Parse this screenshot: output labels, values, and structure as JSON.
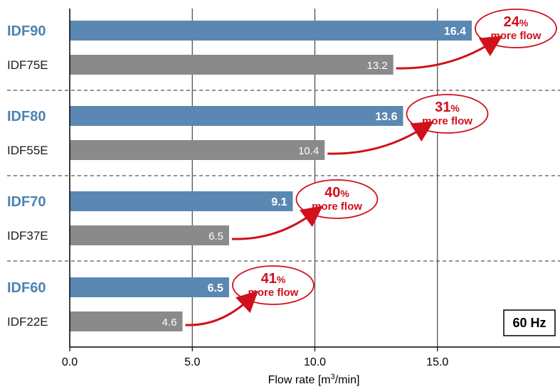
{
  "chart_data": {
    "type": "bar",
    "orientation": "horizontal",
    "categories": [
      "IDF90",
      "IDF75E",
      "IDF80",
      "IDF55E",
      "IDF70",
      "IDF37E",
      "IDF60",
      "IDF22E"
    ],
    "values": [
      16.4,
      13.2,
      13.6,
      10.4,
      9.1,
      6.5,
      6.5,
      4.6
    ],
    "value_labels": [
      "16.4",
      "13.2",
      "13.6",
      "10.4",
      "9.1",
      "6.5",
      "6.5",
      "4.6"
    ],
    "bar_styles": [
      "highlight",
      "normal",
      "highlight",
      "normal",
      "highlight",
      "normal",
      "highlight",
      "normal"
    ],
    "groups": [
      {
        "new_model": "IDF90",
        "old_model": "IDF75E",
        "new_value": 16.4,
        "old_value": 13.2,
        "increase_percent": "24",
        "percent_sign": "%",
        "callout_text": "more flow"
      },
      {
        "new_model": "IDF80",
        "old_model": "IDF55E",
        "new_value": 13.6,
        "old_value": 10.4,
        "increase_percent": "31",
        "percent_sign": "%",
        "callout_text": "more flow"
      },
      {
        "new_model": "IDF70",
        "old_model": "IDF37E",
        "new_value": 9.1,
        "old_value": 6.5,
        "increase_percent": "40",
        "percent_sign": "%",
        "callout_text": "more flow"
      },
      {
        "new_model": "IDF60",
        "old_model": "IDF22E",
        "new_value": 6.5,
        "old_value": 4.6,
        "increase_percent": "41",
        "percent_sign": "%",
        "callout_text": "more flow"
      }
    ],
    "title": "",
    "xlabel_prefix": "Flow rate [m",
    "xlabel_sup": "3",
    "xlabel_suffix": "/min]",
    "ylabel": "",
    "xlim": [
      0,
      20
    ],
    "xticks": [
      0,
      5,
      10,
      15
    ],
    "xtick_labels": [
      "0.0",
      "5.0",
      "10.0",
      "15.0"
    ],
    "grid": true,
    "badge": "60 Hz"
  },
  "colors": {
    "highlight_bar": "#5B88B2",
    "normal_bar": "#8A8A8A",
    "highlight_label": "#4D82B2",
    "normal_label": "#1A1A1A",
    "callout": "#D0101B",
    "axis": "#000000",
    "grid": "#444444",
    "separator": "#555555",
    "bar_text": "#FFFFFF"
  }
}
